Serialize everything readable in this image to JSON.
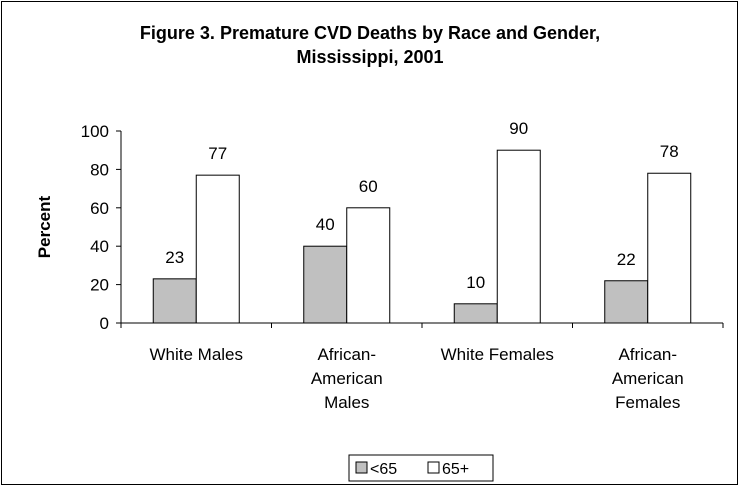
{
  "chart_data": {
    "type": "bar",
    "title": [
      "Figure 3. Premature CVD Deaths by Race and Gender,",
      "Mississippi, 2001"
    ],
    "xlabel": "",
    "ylabel": "Percent",
    "ylim": [
      0,
      100
    ],
    "yticks": [
      "0",
      "20",
      "40",
      "60",
      "80",
      "100"
    ],
    "grid": false,
    "legend_position": "bottom",
    "categories": [
      [
        "White Males"
      ],
      [
        "African-",
        "American",
        "Males"
      ],
      [
        "White Females"
      ],
      [
        "African-",
        "American",
        "Females"
      ]
    ],
    "series": [
      {
        "name": "<65",
        "values": [
          23,
          40,
          10,
          22
        ],
        "color": "#c0c0c0"
      },
      {
        "name": "65+",
        "values": [
          77,
          60,
          90,
          78
        ],
        "color": "#ffffff"
      }
    ]
  }
}
